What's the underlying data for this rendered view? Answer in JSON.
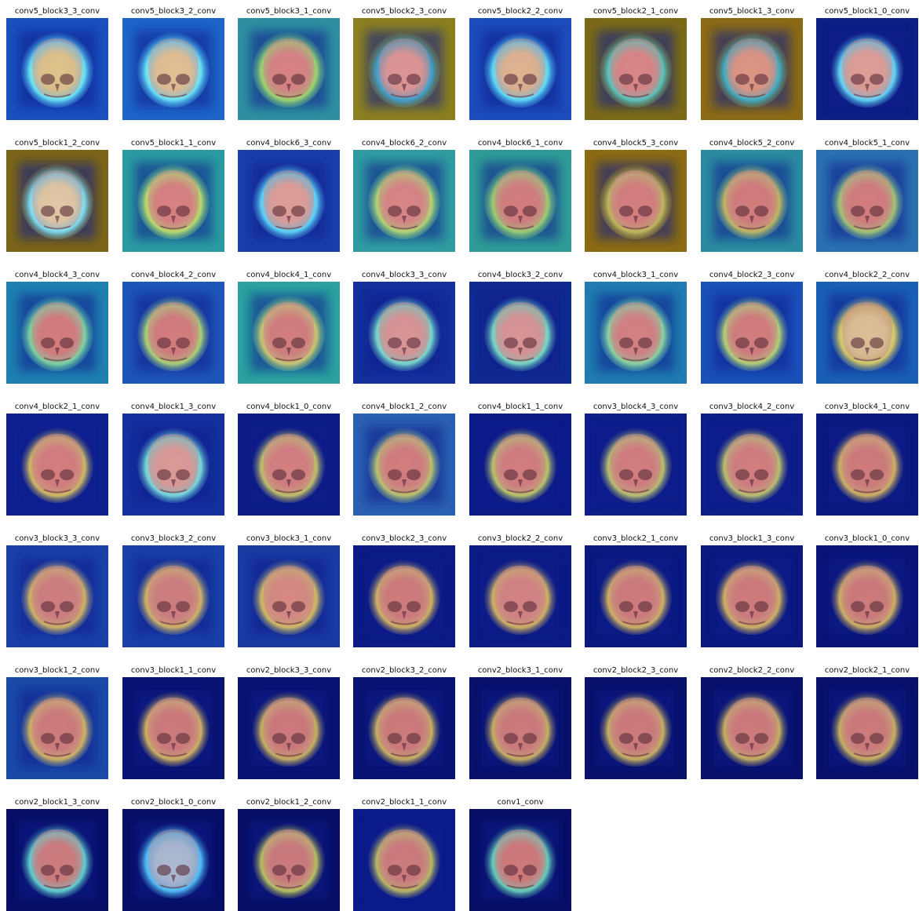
{
  "figure": {
    "panels": [
      {
        "title": "conv5_block3_3_conv",
        "border": "#1a4fbf",
        "halo": "#6ef0ff",
        "core": "#f2f08a",
        "warm": 0.35
      },
      {
        "title": "conv5_block3_2_conv",
        "border": "#1e64c8",
        "halo": "#6ef0ff",
        "core": "#f5e79a",
        "warm": 0.3
      },
      {
        "title": "conv5_block3_1_conv",
        "border": "#2f8fa0",
        "halo": "#a8e06a",
        "core": "#e87a7a",
        "warm": 0.6
      },
      {
        "title": "conv5_block2_3_conv",
        "border": "#8a7f20",
        "halo": "#3fa9d8",
        "core": "#ef9fa0",
        "warm": 0.5
      },
      {
        "title": "conv5_block2_2_conv",
        "border": "#1c4cbb",
        "halo": "#62e8ff",
        "core": "#f2d495",
        "warm": 0.35
      },
      {
        "title": "conv5_block2_1_conv",
        "border": "#7a6a18",
        "halo": "#5fd0c8",
        "core": "#e98282",
        "warm": 0.55
      },
      {
        "title": "conv5_block1_3_conv",
        "border": "#8a6a15",
        "halo": "#3fb9d0",
        "core": "#f0a080",
        "warm": 0.45
      },
      {
        "title": "conv5_block1_0_conv",
        "border": "#0d1e85",
        "halo": "#6ae4ff",
        "core": "#f3b0a0",
        "warm": 0.4
      },
      {
        "title": "conv5_block1_2_conv",
        "border": "#7a6418",
        "halo": "#7fe6ff",
        "core": "#f2f2b8",
        "warm": 0.2
      },
      {
        "title": "conv5_block1_1_conv",
        "border": "#2a9aa0",
        "halo": "#c8e868",
        "core": "#e87878",
        "warm": 0.55
      },
      {
        "title": "conv4_block6_3_conv",
        "border": "#1a3fab",
        "halo": "#62e0ff",
        "core": "#f2b0a2",
        "warm": 0.4
      },
      {
        "title": "conv4_block6_2_conv",
        "border": "#2f9aa0",
        "halo": "#c0e070",
        "core": "#e88080",
        "warm": 0.5
      },
      {
        "title": "conv4_block6_1_conv",
        "border": "#2f9a96",
        "halo": "#a8d870",
        "core": "#e07070",
        "warm": 0.7
      },
      {
        "title": "conv4_block5_3_conv",
        "border": "#8a6a12",
        "halo": "#c9c460",
        "core": "#e27070",
        "warm": 0.8
      },
      {
        "title": "conv4_block5_2_conv",
        "border": "#2a8aa0",
        "halo": "#d0c060",
        "core": "#e06a6a",
        "warm": 0.75
      },
      {
        "title": "conv4_block5_1_conv",
        "border": "#2a70b0",
        "halo": "#b0d070",
        "core": "#e07070",
        "warm": 0.7
      },
      {
        "title": "conv4_block4_3_conv",
        "border": "#1f7fb0",
        "halo": "#8ae0a0",
        "core": "#e07070",
        "warm": 0.55
      },
      {
        "title": "conv4_block4_2_conv",
        "border": "#1f55b8",
        "halo": "#b8e070",
        "core": "#e07070",
        "warm": 0.6
      },
      {
        "title": "conv4_block4_1_conv",
        "border": "#2aa0a0",
        "halo": "#d8d070",
        "core": "#e07070",
        "warm": 0.7
      },
      {
        "title": "conv4_block3_3_conv",
        "border": "#13309c",
        "halo": "#80e8d0",
        "core": "#eaa0a0",
        "warm": 0.55
      },
      {
        "title": "conv4_block3_2_conv",
        "border": "#102a92",
        "halo": "#80e8c8",
        "core": "#eba0a0",
        "warm": 0.55
      },
      {
        "title": "conv4_block3_1_conv",
        "border": "#1f7bb0",
        "halo": "#98e0a0",
        "core": "#e07878",
        "warm": 0.6
      },
      {
        "title": "conv4_block2_3_conv",
        "border": "#1a50b8",
        "halo": "#c0e070",
        "core": "#e07070",
        "warm": 0.65
      },
      {
        "title": "conv4_block2_2_conv",
        "border": "#1a5fb6",
        "halo": "#e0d060",
        "core": "#f2f0a0",
        "warm": 0.55
      },
      {
        "title": "conv4_block2_1_conv",
        "border": "#0e2090",
        "halo": "#e0c860",
        "core": "#e67070",
        "warm": 0.85
      },
      {
        "title": "conv4_block1_3_conv",
        "border": "#14309e",
        "halo": "#80e8e0",
        "core": "#ebaaa0",
        "warm": 0.5
      },
      {
        "title": "conv4_block1_0_conv",
        "border": "#0c1b86",
        "halo": "#d0d068",
        "core": "#e27272",
        "warm": 0.8
      },
      {
        "title": "conv4_block1_2_conv",
        "border": "#2a60b0",
        "halo": "#c8d068",
        "core": "#e07070",
        "warm": 0.7
      },
      {
        "title": "conv4_block1_1_conv",
        "border": "#0c1a88",
        "halo": "#c8d468",
        "core": "#e07070",
        "warm": 0.75
      },
      {
        "title": "conv3_block4_3_conv",
        "border": "#0d1d8a",
        "halo": "#c8d06c",
        "core": "#e07070",
        "warm": 0.75
      },
      {
        "title": "conv3_block4_2_conv",
        "border": "#0d1d8a",
        "halo": "#c8d06c",
        "core": "#e07070",
        "warm": 0.75
      },
      {
        "title": "conv3_block4_1_conv",
        "border": "#0b1880",
        "halo": "#e0c060",
        "core": "#d86a6a",
        "warm": 0.9
      },
      {
        "title": "conv3_block3_3_conv",
        "border": "#1a40a8",
        "halo": "#e0c060",
        "core": "#d87070",
        "warm": 0.85
      },
      {
        "title": "conv3_block3_2_conv",
        "border": "#1a40a8",
        "halo": "#e0c060",
        "core": "#d87070",
        "warm": 0.85
      },
      {
        "title": "conv3_block3_1_conv",
        "border": "#1a3aa2",
        "halo": "#e0c860",
        "core": "#ea8a7a",
        "warm": 0.85
      },
      {
        "title": "conv3_block2_3_conv",
        "border": "#0b1a85",
        "halo": "#e0c060",
        "core": "#d86a6a",
        "warm": 0.9
      },
      {
        "title": "conv3_block2_2_conv",
        "border": "#0b1a85",
        "halo": "#e0c060",
        "core": "#e27a7a",
        "warm": 0.9
      },
      {
        "title": "conv3_block2_1_conv",
        "border": "#0a1880",
        "halo": "#e0c060",
        "core": "#d86a6a",
        "warm": 0.9
      },
      {
        "title": "conv3_block1_3_conv",
        "border": "#0a1880",
        "halo": "#e0c060",
        "core": "#d86a6a",
        "warm": 0.9
      },
      {
        "title": "conv3_block1_0_conv",
        "border": "#091478",
        "halo": "#e0c060",
        "core": "#d46868",
        "warm": 0.9
      },
      {
        "title": "conv3_block1_2_conv",
        "border": "#1a4aa8",
        "halo": "#e0c060",
        "core": "#d86a6a",
        "warm": 0.9
      },
      {
        "title": "conv3_block1_1_conv",
        "border": "#081270",
        "halo": "#e0c060",
        "core": "#d46868",
        "warm": 0.9
      },
      {
        "title": "conv2_block3_3_conv",
        "border": "#081270",
        "halo": "#d8c060",
        "core": "#d46868",
        "warm": 0.9
      },
      {
        "title": "conv2_block3_2_conv",
        "border": "#081270",
        "halo": "#d8c060",
        "core": "#d46868",
        "warm": 0.9
      },
      {
        "title": "conv2_block3_1_conv",
        "border": "#07106a",
        "halo": "#d8c060",
        "core": "#d46868",
        "warm": 0.9
      },
      {
        "title": "conv2_block2_3_conv",
        "border": "#07106a",
        "halo": "#d8c060",
        "core": "#d46868",
        "warm": 0.9
      },
      {
        "title": "conv2_block2_2_conv",
        "border": "#07106a",
        "halo": "#d8c060",
        "core": "#d46868",
        "warm": 0.9
      },
      {
        "title": "conv2_block2_1_conv",
        "border": "#07106a",
        "halo": "#d8c060",
        "core": "#d46868",
        "warm": 0.9
      },
      {
        "title": "conv2_block1_3_conv",
        "border": "#060e66",
        "halo": "#6ae0d8",
        "core": "#d47070",
        "warm": 0.6
      },
      {
        "title": "conv2_block1_0_conv",
        "border": "#060e66",
        "halo": "#58c8ff",
        "core": "#9ad8ff",
        "warm": 0.15
      },
      {
        "title": "conv2_block1_2_conv",
        "border": "#060e66",
        "halo": "#c8d060",
        "core": "#d06868",
        "warm": 0.8
      },
      {
        "title": "conv2_block1_1_conv",
        "border": "#0a1a8a",
        "halo": "#c8c860",
        "core": "#d46a6a",
        "warm": 0.8
      },
      {
        "title": "conv1_conv",
        "border": "#060e66",
        "halo": "#70e0c0",
        "core": "#d86a6a",
        "warm": 0.7
      }
    ]
  }
}
